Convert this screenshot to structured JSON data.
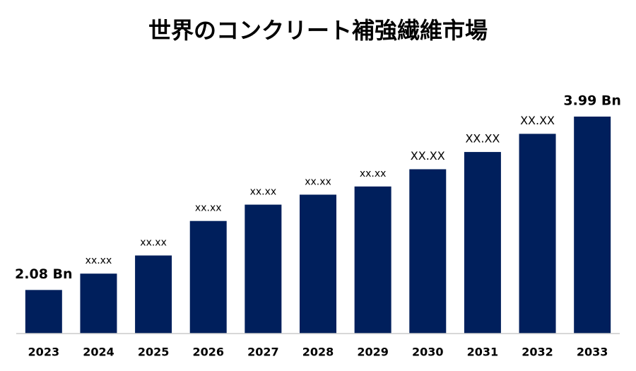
{
  "chart_data": {
    "type": "bar",
    "title": "世界のコンクリート補強繊維市場",
    "categories": [
      "2023",
      "2024",
      "2025",
      "2026",
      "2027",
      "2028",
      "2029",
      "2030",
      "2031",
      "2032",
      "2033"
    ],
    "values": [
      2.08,
      2.26,
      2.46,
      2.84,
      3.02,
      3.13,
      3.22,
      3.41,
      3.6,
      3.8,
      3.99
    ],
    "value_labels": [
      "2.08 Bn",
      "xx.xx",
      "xx.xx",
      "xx.xx",
      "xx.xx",
      "xx.xx",
      "xx.xx",
      "XX.XX",
      "XX.XX",
      "XX.XX",
      "3.99 Bn"
    ],
    "color": "#001f5c",
    "ylim": [
      1.6,
      4.2
    ]
  }
}
